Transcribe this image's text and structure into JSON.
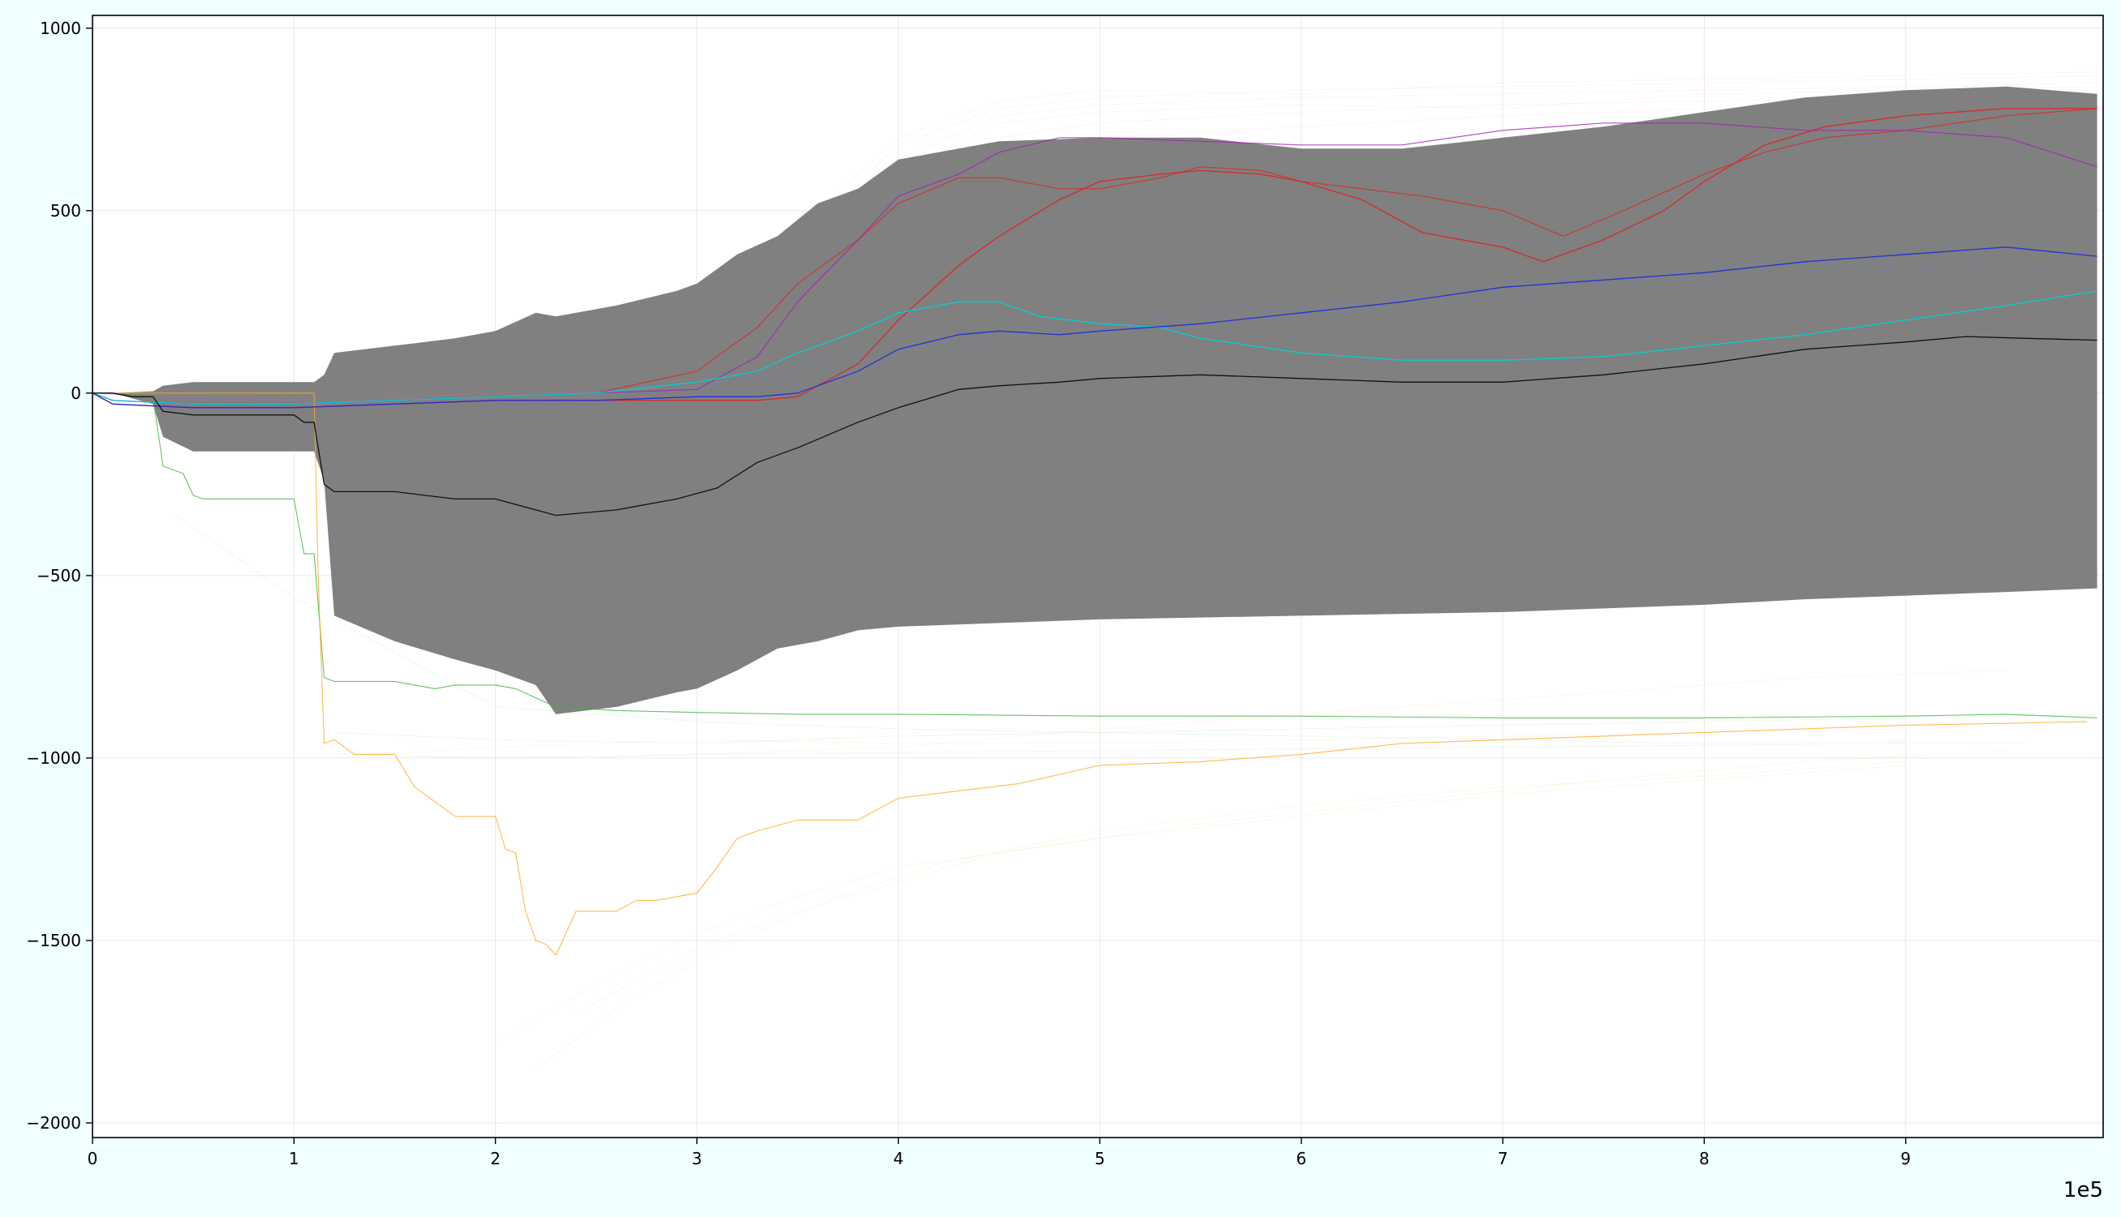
{
  "chart_data": {
    "type": "line",
    "title": "",
    "xlabel": "",
    "ylabel": "",
    "x_offset_label": "1e5",
    "xlim": [
      0,
      9.98
    ],
    "ylim": [
      -2040,
      1035
    ],
    "grid": true,
    "x_ticks": [
      0,
      1,
      2,
      3,
      4,
      5,
      6,
      7,
      8,
      9
    ],
    "x_tick_labels": [
      "0",
      "1",
      "2",
      "3",
      "4",
      "5",
      "6",
      "7",
      "8",
      "9"
    ],
    "y_ticks": [
      1000,
      500,
      0,
      -500,
      -1000,
      -1500,
      -2000
    ],
    "y_tick_labels": [
      "1000",
      "500",
      "0",
      "−500",
      "−1000",
      "−1500",
      "−2000"
    ],
    "band": {
      "color": "#808080",
      "x": [
        0.1,
        0.3,
        0.35,
        0.5,
        1.0,
        1.1,
        1.15,
        1.2,
        1.5,
        1.8,
        2.0,
        2.2,
        2.3,
        2.6,
        2.9,
        3.0,
        3.2,
        3.4,
        3.6,
        3.8,
        4.0,
        4.5,
        5.0,
        5.5,
        6.0,
        6.5,
        7.0,
        7.5,
        8.0,
        8.5,
        9.0,
        9.5,
        9.95
      ],
      "upper": [
        0,
        5,
        20,
        30,
        30,
        30,
        50,
        110,
        130,
        150,
        170,
        220,
        210,
        240,
        280,
        300,
        380,
        430,
        520,
        560,
        640,
        690,
        700,
        700,
        670,
        670,
        700,
        730,
        770,
        810,
        830,
        840,
        820
      ],
      "lower": [
        0,
        -30,
        -120,
        -160,
        -160,
        -160,
        -240,
        -610,
        -680,
        -730,
        -760,
        -800,
        -880,
        -860,
        -820,
        -810,
        -760,
        -700,
        -680,
        -650,
        -640,
        -630,
        -620,
        -615,
        -610,
        -605,
        -600,
        -590,
        -580,
        -565,
        -555,
        -545,
        -535
      ]
    },
    "series": [
      {
        "color": "#111111",
        "width": 1.3,
        "opacity": 1.0,
        "x": [
          0,
          0.1,
          0.2,
          0.3,
          0.35,
          0.5,
          0.8,
          1.0,
          1.05,
          1.1,
          1.15,
          1.2,
          1.5,
          1.8,
          2.0,
          2.2,
          2.3,
          2.6,
          2.9,
          3.1,
          3.3,
          3.5,
          3.8,
          4.0,
          4.3,
          4.5,
          4.8,
          5.0,
          5.5,
          6.0,
          6.5,
          7.0,
          7.5,
          8.0,
          8.5,
          9.0,
          9.3,
          9.6,
          9.95
        ],
        "y": [
          0,
          0,
          -10,
          -10,
          -50,
          -60,
          -60,
          -60,
          -80,
          -80,
          -250,
          -270,
          -270,
          -290,
          -290,
          -320,
          -335,
          -320,
          -290,
          -260,
          -190,
          -150,
          -80,
          -40,
          10,
          20,
          30,
          40,
          50,
          40,
          30,
          30,
          50,
          80,
          120,
          140,
          155,
          150,
          145
        ]
      },
      {
        "color": "#3cb43c",
        "width": 1.1,
        "opacity": 0.8,
        "x": [
          0,
          0.1,
          0.3,
          0.35,
          0.45,
          0.5,
          0.55,
          1.0,
          1.05,
          1.1,
          1.15,
          1.2,
          1.3,
          1.5,
          1.6,
          1.7,
          1.8,
          2.0,
          2.1,
          2.3,
          2.6,
          3.0,
          3.5,
          4.0,
          5.0,
          6.0,
          7.0,
          8.0,
          9.0,
          9.5,
          9.95
        ],
        "y": [
          0,
          0,
          -10,
          -200,
          -220,
          -280,
          -290,
          -290,
          -440,
          -440,
          -780,
          -790,
          -790,
          -790,
          -800,
          -810,
          -800,
          -800,
          -810,
          -860,
          -870,
          -875,
          -880,
          -880,
          -885,
          -885,
          -890,
          -890,
          -885,
          -880,
          -890
        ]
      },
      {
        "color": "#ffaa22",
        "width": 1.1,
        "opacity": 0.8,
        "x": [
          0,
          1.1,
          1.12,
          1.15,
          1.2,
          1.3,
          1.5,
          1.6,
          1.8,
          2.0,
          2.05,
          2.1,
          2.15,
          2.2,
          2.25,
          2.3,
          2.4,
          2.6,
          2.7,
          2.8,
          3.0,
          3.1,
          3.2,
          3.3,
          3.5,
          3.7,
          3.8,
          4.0,
          4.3,
          4.6,
          5.0,
          5.5,
          6.0,
          6.5,
          7.0,
          7.5,
          8.0,
          8.5,
          9.0,
          9.5,
          9.9
        ],
        "y": [
          0,
          0,
          -500,
          -960,
          -950,
          -990,
          -990,
          -1080,
          -1160,
          -1160,
          -1250,
          -1260,
          -1420,
          -1500,
          -1510,
          -1540,
          -1420,
          -1420,
          -1390,
          -1390,
          -1370,
          -1300,
          -1220,
          -1200,
          -1170,
          -1170,
          -1170,
          -1110,
          -1090,
          -1070,
          -1020,
          -1010,
          -990,
          -960,
          -950,
          -940,
          -930,
          -920,
          -910,
          -905,
          -900
        ]
      },
      {
        "color": "#00d0d0",
        "width": 1.4,
        "opacity": 0.9,
        "x": [
          0,
          0.1,
          0.5,
          1.0,
          1.5,
          2.0,
          2.5,
          3.0,
          3.3,
          3.5,
          3.8,
          4.0,
          4.3,
          4.5,
          4.7,
          5.0,
          5.3,
          5.5,
          6.0,
          6.5,
          7.0,
          7.5,
          8.0,
          8.5,
          9.0,
          9.5,
          9.95
        ],
        "y": [
          0,
          -20,
          -30,
          -30,
          -20,
          -10,
          0,
          30,
          60,
          110,
          170,
          220,
          250,
          250,
          210,
          190,
          180,
          150,
          110,
          90,
          90,
          100,
          130,
          160,
          200,
          240,
          280
        ]
      },
      {
        "color": "#1e28dc",
        "width": 1.3,
        "opacity": 0.9,
        "x": [
          0,
          0.1,
          0.5,
          1.0,
          1.5,
          2.0,
          2.5,
          3.0,
          3.3,
          3.5,
          3.8,
          4.0,
          4.3,
          4.5,
          4.8,
          5.0,
          5.5,
          6.0,
          6.5,
          7.0,
          7.5,
          8.0,
          8.5,
          9.0,
          9.5,
          9.95
        ],
        "y": [
          0,
          -30,
          -40,
          -40,
          -30,
          -20,
          -20,
          -10,
          -10,
          0,
          60,
          120,
          160,
          170,
          160,
          170,
          190,
          220,
          250,
          290,
          310,
          330,
          360,
          380,
          400,
          375
        ]
      },
      {
        "color": "#e02020",
        "width": 1.4,
        "opacity": 0.85,
        "x": [
          0,
          0.1,
          0.5,
          1.0,
          1.5,
          2.0,
          2.5,
          3.0,
          3.3,
          3.5,
          3.8,
          4.0,
          4.3,
          4.5,
          4.8,
          5.0,
          5.3,
          5.5,
          5.8,
          6.0,
          6.3,
          6.6,
          7.0,
          7.2,
          7.5,
          7.8,
          8.0,
          8.3,
          8.6,
          9.0,
          9.5,
          9.95
        ],
        "y": [
          0,
          -30,
          -40,
          -40,
          -30,
          -20,
          -20,
          -20,
          -20,
          -10,
          80,
          200,
          350,
          430,
          530,
          580,
          600,
          610,
          600,
          580,
          530,
          440,
          400,
          360,
          420,
          500,
          580,
          680,
          730,
          760,
          780,
          780
        ]
      },
      {
        "color": "#e02020",
        "width": 1.2,
        "opacity": 0.75,
        "x": [
          0,
          0.1,
          0.5,
          1.0,
          1.5,
          2.0,
          2.5,
          3.0,
          3.3,
          3.5,
          3.8,
          4.0,
          4.3,
          4.5,
          4.8,
          5.0,
          5.3,
          5.5,
          5.8,
          6.0,
          6.3,
          6.6,
          7.0,
          7.3,
          7.6,
          8.0,
          8.3,
          8.6,
          9.0,
          9.5,
          9.95
        ],
        "y": [
          0,
          -20,
          -30,
          -30,
          -20,
          -10,
          0,
          60,
          180,
          300,
          420,
          520,
          590,
          590,
          560,
          560,
          590,
          620,
          610,
          580,
          560,
          540,
          500,
          430,
          500,
          600,
          660,
          700,
          720,
          760,
          780
        ]
      },
      {
        "color": "#a020b4",
        "width": 1.2,
        "opacity": 0.8,
        "x": [
          0,
          0.1,
          0.5,
          1.0,
          1.5,
          2.0,
          2.5,
          3.0,
          3.3,
          3.5,
          3.8,
          4.0,
          4.3,
          4.5,
          4.8,
          5.0,
          5.5,
          6.0,
          6.5,
          7.0,
          7.5,
          8.0,
          8.5,
          9.0,
          9.5,
          9.95
        ],
        "y": [
          0,
          -20,
          -30,
          -30,
          -20,
          -10,
          0,
          10,
          100,
          250,
          420,
          540,
          600,
          660,
          700,
          700,
          690,
          680,
          680,
          720,
          740,
          740,
          720,
          720,
          700,
          620
        ]
      },
      {
        "color": "#ff78a0",
        "width": 0.8,
        "opacity": 0.1,
        "x": [
          0,
          1.0,
          2.0,
          3.0,
          3.5,
          4.0,
          4.5,
          5.0,
          6.0,
          7.0,
          8.0,
          9.0,
          9.95
        ],
        "y": [
          0,
          -20,
          0,
          80,
          380,
          640,
          760,
          790,
          810,
          820,
          830,
          840,
          850
        ]
      },
      {
        "color": "#ff78a0",
        "width": 0.8,
        "opacity": 0.1,
        "x": [
          0,
          1.0,
          2.0,
          3.0,
          3.5,
          4.0,
          4.5,
          5.0,
          6.0,
          7.0,
          8.0,
          9.0,
          9.95
        ],
        "y": [
          0,
          -30,
          -10,
          40,
          300,
          560,
          700,
          740,
          770,
          790,
          800,
          810,
          820
        ]
      },
      {
        "color": "#ff78a0",
        "width": 0.8,
        "opacity": 0.1,
        "x": [
          0,
          1.0,
          2.0,
          3.0,
          3.5,
          4.0,
          4.5,
          5.0,
          6.0,
          7.0,
          8.0,
          9.0,
          9.95
        ],
        "y": [
          0,
          -10,
          20,
          150,
          450,
          700,
          800,
          830,
          820,
          850,
          860,
          870,
          880
        ]
      },
      {
        "color": "#ff78a0",
        "width": 0.8,
        "opacity": 0.1,
        "x": [
          0,
          1.0,
          2.0,
          3.0,
          3.5,
          4.0,
          4.5,
          5.0,
          6.0,
          7.0,
          8.0,
          9.0,
          9.95
        ],
        "y": [
          0,
          -40,
          -20,
          20,
          250,
          500,
          640,
          700,
          730,
          760,
          780,
          800,
          790
        ]
      },
      {
        "color": "#ff78a0",
        "width": 0.8,
        "opacity": 0.1,
        "x": [
          0,
          1.0,
          2.0,
          3.0,
          3.5,
          4.0,
          4.5,
          5.0,
          6.0,
          7.0,
          8.0,
          9.0,
          9.95
        ],
        "y": [
          0,
          -20,
          10,
          120,
          420,
          680,
          780,
          810,
          830,
          840,
          850,
          860,
          870
        ]
      },
      {
        "color": "#ff78a0",
        "width": 0.8,
        "opacity": 0.1,
        "x": [
          0,
          1.0,
          2.0,
          3.0,
          3.5,
          4.0,
          4.5,
          5.0,
          6.0,
          7.0,
          8.0,
          9.0,
          9.95
        ],
        "y": [
          0,
          -30,
          0,
          60,
          350,
          600,
          740,
          770,
          790,
          780,
          820,
          830,
          840
        ]
      },
      {
        "color": "#6478ff",
        "width": 0.8,
        "opacity": 0.15,
        "x": [
          0,
          1.0,
          2.0,
          3.0,
          4.0,
          5.0,
          6.0,
          7.0,
          8.0,
          9.0,
          9.95
        ],
        "y": [
          0,
          -30,
          -20,
          0,
          120,
          180,
          230,
          280,
          330,
          380,
          420
        ]
      },
      {
        "color": "#6478ff",
        "width": 0.8,
        "opacity": 0.15,
        "x": [
          0,
          1.0,
          2.0,
          3.0,
          4.0,
          5.0,
          6.0,
          7.0,
          8.0,
          9.0,
          9.95
        ],
        "y": [
          0,
          -40,
          -30,
          -10,
          100,
          160,
          210,
          260,
          300,
          340,
          360
        ]
      },
      {
        "color": "#6478ff",
        "width": 0.8,
        "opacity": 0.15,
        "x": [
          0,
          1.0,
          2.0,
          3.0,
          4.0,
          5.0,
          6.0,
          7.0,
          8.0,
          9.0,
          9.95
        ],
        "y": [
          0,
          -20,
          -10,
          20,
          150,
          200,
          250,
          300,
          350,
          400,
          450
        ]
      },
      {
        "color": "#6478ff",
        "width": 0.8,
        "opacity": 0.15,
        "x": [
          0,
          1.0,
          2.0,
          3.0,
          4.0,
          5.0,
          6.0,
          7.0,
          8.0,
          9.0,
          9.95
        ],
        "y": [
          0,
          -30,
          -20,
          10,
          130,
          190,
          240,
          290,
          320,
          350,
          330
        ]
      },
      {
        "color": "#ffb450",
        "width": 0.8,
        "opacity": 0.15,
        "x": [
          2.0,
          2.5,
          3.0,
          3.5,
          4.0,
          5.0,
          6.0,
          7.0,
          8.0,
          9.0
        ],
        "y": [
          -1780,
          -1620,
          -1480,
          -1380,
          -1300,
          -1220,
          -1160,
          -1100,
          -1060,
          -1020
        ]
      },
      {
        "color": "#ffb450",
        "width": 0.8,
        "opacity": 0.15,
        "x": [
          2.2,
          2.7,
          3.2,
          3.7,
          4.2,
          5.0,
          6.0,
          7.0,
          8.0,
          9.0
        ],
        "y": [
          -1850,
          -1650,
          -1500,
          -1380,
          -1290,
          -1200,
          -1130,
          -1080,
          -1050,
          -1010
        ]
      },
      {
        "color": "#ffb450",
        "width": 0.8,
        "opacity": 0.15,
        "x": [
          2.4,
          3.0,
          3.5,
          4.0,
          4.5,
          5.5,
          6.5,
          7.5,
          8.5,
          9.5
        ],
        "y": [
          -1700,
          -1520,
          -1420,
          -1340,
          -1260,
          -1180,
          -1120,
          -1060,
          -1010,
          -980
        ]
      },
      {
        "color": "#ffb450",
        "width": 0.8,
        "opacity": 0.15,
        "x": [
          1.2,
          2.0,
          3.0,
          4.0,
          5.0,
          6.0,
          7.0,
          8.0,
          9.0,
          9.5
        ],
        "y": [
          -1000,
          -970,
          -950,
          -960,
          -960,
          -950,
          -940,
          -930,
          -910,
          -900
        ]
      },
      {
        "color": "#ffb450",
        "width": 0.8,
        "opacity": 0.15,
        "x": [
          2.5,
          3.0,
          4.0,
          5.0,
          6.0,
          7.0,
          8.0,
          8.5,
          9.0,
          9.5
        ],
        "y": [
          -1000,
          -990,
          -970,
          -920,
          -880,
          -840,
          -800,
          -780,
          -770,
          -760
        ]
      },
      {
        "color": "#64c864",
        "width": 0.8,
        "opacity": 0.15,
        "x": [
          1.2,
          2.0,
          3.0,
          4.0,
          5.0,
          6.0,
          7.0,
          8.0,
          9.0,
          9.95
        ],
        "y": [
          -930,
          -950,
          -960,
          -940,
          -930,
          -920,
          -910,
          -900,
          -890,
          -880
        ]
      },
      {
        "color": "#64c864",
        "width": 0.8,
        "opacity": 0.15,
        "x": [
          0.4,
          1.0,
          2.0,
          3.0,
          4.0,
          5.0,
          6.0,
          7.0,
          8.0,
          9.0
        ],
        "y": [
          -330,
          -560,
          -860,
          -900,
          -920,
          -930,
          -940,
          -950,
          -960,
          -955
        ]
      },
      {
        "color": "#64c864",
        "width": 0.8,
        "opacity": 0.15,
        "x": [
          1.2,
          2.0,
          3.0,
          4.0,
          5.0,
          6.0,
          7.0,
          8.0,
          9.0,
          9.6
        ],
        "y": [
          -990,
          -1000,
          -990,
          -985,
          -980,
          -975,
          -970,
          -965,
          -960,
          -960
        ]
      }
    ]
  }
}
